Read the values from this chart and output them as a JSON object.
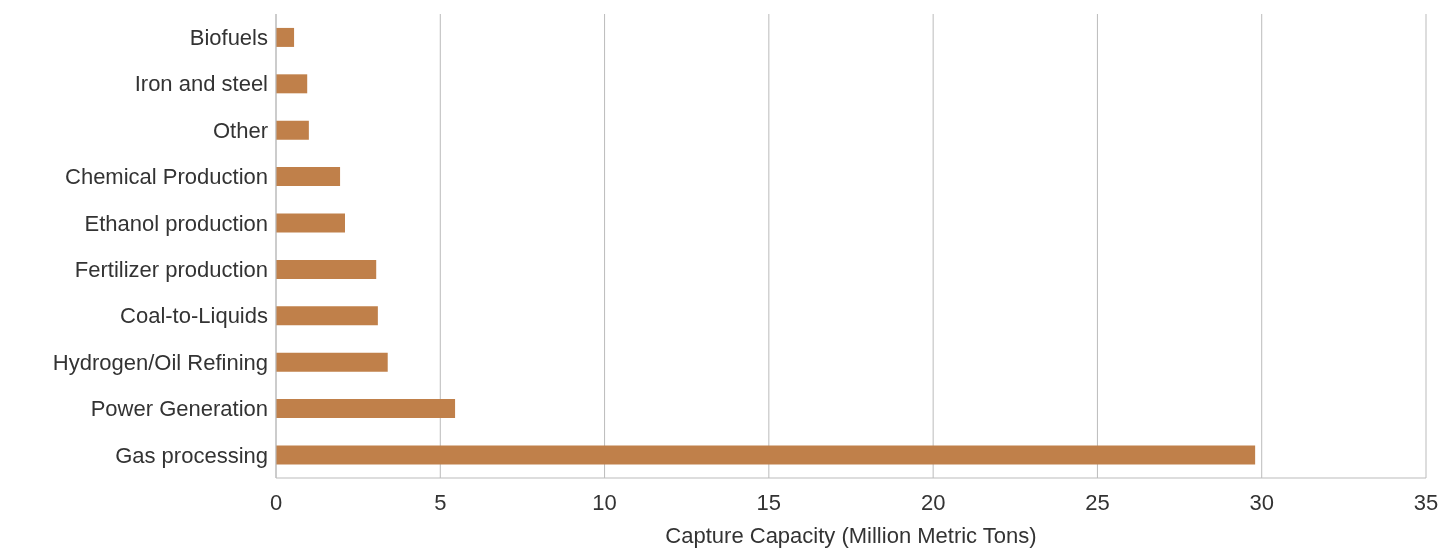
{
  "chart_data": {
    "type": "bar",
    "orientation": "horizontal",
    "xlabel": "Capture Capacity (Million Metric Tons)",
    "categories": [
      "Biofuels",
      "Iron and steel",
      "Other",
      "Chemical Production",
      "Ethanol production",
      "Fertilizer production",
      "Coal-to-Liquids",
      "Hydrogen/Oil Refining",
      "Power Generation",
      "Gas processing"
    ],
    "values": [
      0.55,
      0.95,
      1.0,
      1.95,
      2.1,
      3.05,
      3.1,
      3.4,
      5.45,
      29.8
    ],
    "color": "#c0804a",
    "xlim": [
      0,
      35
    ],
    "xticks": [
      0,
      5,
      10,
      15,
      20,
      25,
      30,
      35
    ],
    "grid": "x",
    "legend": false
  }
}
